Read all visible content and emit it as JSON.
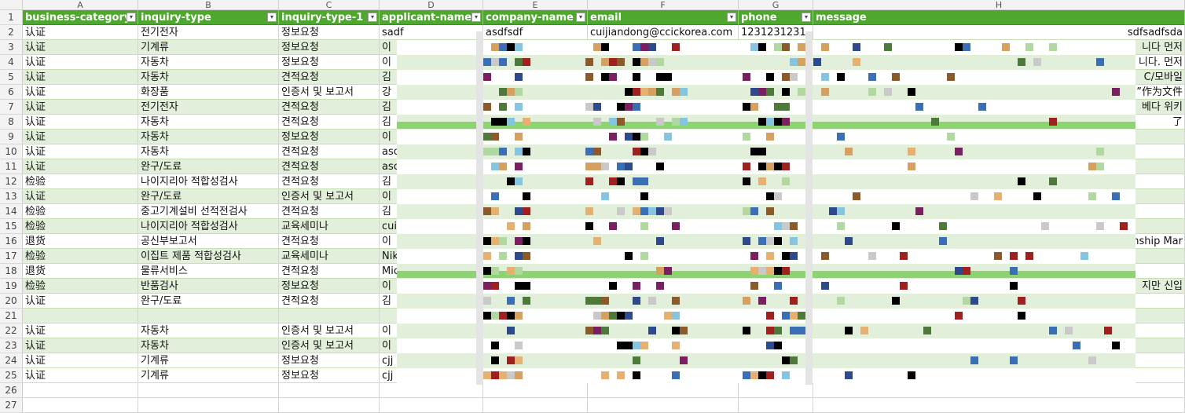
{
  "sheet": {
    "column_letters": [
      "A",
      "B",
      "C",
      "D",
      "E",
      "F",
      "G",
      "H"
    ],
    "headers": [
      "business-category",
      "inquiry-type",
      "inquiry-type-1",
      "applicant-name",
      "company-name",
      "email",
      "phone",
      "message"
    ],
    "filter_glyph": "▾",
    "rows": [
      {
        "num": "2",
        "cells": [
          "认证",
          "전기전자",
          "정보요청",
          "sadf",
          "asdfsdf",
          "cuijiandong@ccickorea.com",
          "1231231231",
          "sdfsadfsda"
        ]
      },
      {
        "num": "3",
        "cells": [
          "认证",
          "기계류",
          "정보요청",
          "이",
          "",
          "",
          "",
          "니다 먼저"
        ]
      },
      {
        "num": "4",
        "cells": [
          "认证",
          "자동차",
          "정보요청",
          "이",
          "",
          "",
          "",
          "니다. 먼저"
        ]
      },
      {
        "num": "5",
        "cells": [
          "认证",
          "자동차",
          "견적요청",
          "김",
          "",
          "",
          "",
          "C/모바일"
        ]
      },
      {
        "num": "6",
        "cells": [
          "认证",
          "화장품",
          "인증서 및 보고서",
          "강",
          "",
          "",
          "",
          "”作为文件"
        ]
      },
      {
        "num": "7",
        "cells": [
          "认证",
          "전기전자",
          "견적요청",
          "김",
          "",
          "",
          "",
          "베다 위키"
        ]
      },
      {
        "num": "8",
        "cells": [
          "认证",
          "자동차",
          "견적요청",
          "김",
          "",
          "",
          "",
          "了"
        ]
      },
      {
        "num": "9",
        "cells": [
          "认证",
          "자동차",
          "정보요청",
          "이",
          "",
          "",
          "",
          ""
        ]
      },
      {
        "num": "10",
        "cells": [
          "认证",
          "자동차",
          "견적요청",
          "asc",
          "",
          "",
          "",
          ""
        ]
      },
      {
        "num": "11",
        "cells": [
          "认证",
          "완구/도료",
          "견적요청",
          "asc",
          "",
          "",
          "",
          ""
        ]
      },
      {
        "num": "12",
        "cells": [
          "检验",
          "나이지리아 적합성검사",
          "견적요청",
          "김",
          "",
          "",
          "",
          ""
        ]
      },
      {
        "num": "13",
        "cells": [
          "认证",
          "완구/도료",
          "인증서 및 보고서",
          "이",
          "",
          "",
          "",
          ""
        ]
      },
      {
        "num": "14",
        "cells": [
          "检验",
          "중고기계설비 선적전검사",
          "견적요청",
          "김",
          "",
          "",
          "",
          ""
        ]
      },
      {
        "num": "15",
        "cells": [
          "检验",
          "나이지리아 적합성검사",
          "교육세미나",
          "cui",
          "",
          "",
          "",
          ""
        ]
      },
      {
        "num": "16",
        "cells": [
          "退货",
          "공신부보고서",
          "견적요청",
          "이",
          "",
          "",
          "",
          "nship Mar"
        ]
      },
      {
        "num": "17",
        "cells": [
          "检验",
          "이집트 제품 적합성검사",
          "교육세미나",
          "Nik",
          "",
          "",
          "",
          ""
        ]
      },
      {
        "num": "18",
        "cells": [
          "退货",
          "물류서비스",
          "견적요청",
          "Mic",
          "",
          "",
          "",
          ""
        ]
      },
      {
        "num": "19",
        "cells": [
          "检验",
          "반품검사",
          "정보요청",
          "이",
          "",
          "",
          "",
          "지만 신입"
        ]
      },
      {
        "num": "20",
        "cells": [
          "认证",
          "완구/도료",
          "견적요청",
          "김",
          "",
          "",
          "",
          ""
        ]
      },
      {
        "num": "21",
        "cells": [
          "",
          "",
          "",
          "",
          "",
          "",
          "",
          ""
        ]
      },
      {
        "num": "22",
        "cells": [
          "认证",
          "자동차",
          "인증서 및 보고서",
          "이",
          "",
          "",
          "",
          ""
        ]
      },
      {
        "num": "23",
        "cells": [
          "认证",
          "자동차",
          "인증서 및 보고서",
          "이",
          "",
          "",
          "",
          ""
        ]
      },
      {
        "num": "24",
        "cells": [
          "认证",
          "기계류",
          "정보요청",
          "cjj",
          "",
          "",
          "",
          ""
        ]
      },
      {
        "num": "25",
        "cells": [
          "认证",
          "기계류",
          "정보요청",
          "cjj",
          "",
          "",
          "",
          ""
        ]
      },
      {
        "num": "26",
        "cells": [
          "",
          "",
          "",
          "",
          "",
          "",
          "",
          ""
        ]
      },
      {
        "num": "27",
        "cells": [
          "",
          "",
          "",
          "",
          "",
          "",
          "",
          ""
        ]
      }
    ]
  },
  "colors": {
    "header_fill": "#4ea72e",
    "band_fill": "#e2efda",
    "highlight_strip": "#8cd470",
    "gridline": "#d4d4d4"
  }
}
